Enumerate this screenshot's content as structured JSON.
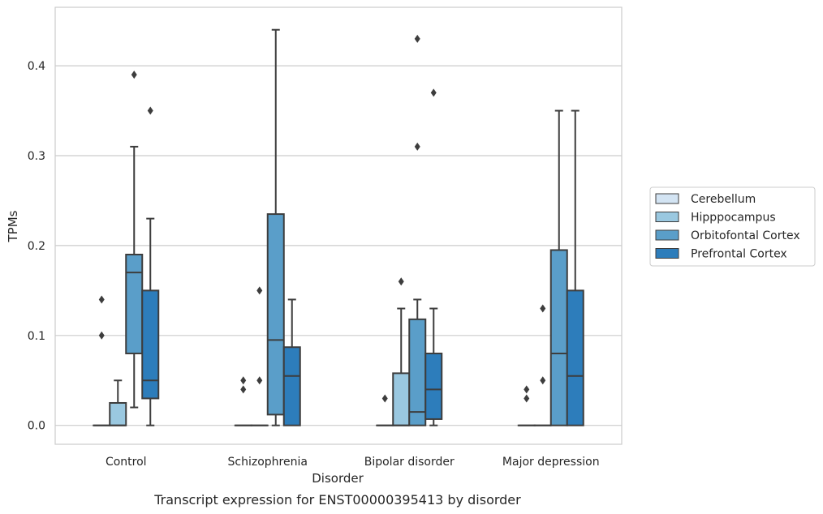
{
  "chart_data": {
    "type": "box",
    "title": "",
    "caption": "Transcript expression for ENST00000395413 by disorder",
    "xlabel": "Disorder",
    "ylabel": "TPMs",
    "ylim": [
      -0.021,
      0.465
    ],
    "yticks": [
      0.0,
      0.1,
      0.2,
      0.3,
      0.4
    ],
    "ytick_labels": [
      "0.0",
      "0.1",
      "0.2",
      "0.3",
      "0.4"
    ],
    "categories": [
      "Control",
      "Schizophrenia",
      "Bipolar disorder",
      "Major depression"
    ],
    "grid": "horizontal",
    "legend_position": "right",
    "series": [
      {
        "name": "Cerebellum",
        "color": "#d3e4f3",
        "boxes": [
          {
            "q1": 0.0,
            "median": 0.0,
            "q3": 0.0,
            "whisker_low": 0.0,
            "whisker_high": 0.0,
            "outliers": [
              0.1,
              0.14
            ]
          },
          {
            "q1": 0.0,
            "median": 0.0,
            "q3": 0.0,
            "whisker_low": 0.0,
            "whisker_high": 0.0,
            "outliers": [
              0.04,
              0.05
            ]
          },
          {
            "q1": 0.0,
            "median": 0.0,
            "q3": 0.0,
            "whisker_low": 0.0,
            "whisker_high": 0.0,
            "outliers": [
              0.03
            ]
          },
          {
            "q1": 0.0,
            "median": 0.0,
            "q3": 0.0,
            "whisker_low": 0.0,
            "whisker_high": 0.0,
            "outliers": [
              0.03,
              0.04
            ]
          }
        ]
      },
      {
        "name": "Hipppocampus",
        "color": "#9ac8e0",
        "boxes": [
          {
            "q1": 0.0,
            "median": 0.0,
            "q3": 0.025,
            "whisker_low": 0.0,
            "whisker_high": 0.05,
            "outliers": []
          },
          {
            "q1": 0.0,
            "median": 0.0,
            "q3": 0.0,
            "whisker_low": 0.0,
            "whisker_high": 0.0,
            "outliers": [
              0.05,
              0.15
            ]
          },
          {
            "q1": 0.0,
            "median": 0.0,
            "q3": 0.058,
            "whisker_low": 0.0,
            "whisker_high": 0.13,
            "outliers": [
              0.16
            ]
          },
          {
            "q1": 0.0,
            "median": 0.0,
            "q3": 0.0,
            "whisker_low": 0.0,
            "whisker_high": 0.0,
            "outliers": [
              0.05,
              0.13
            ]
          }
        ]
      },
      {
        "name": "Orbitofontal Cortex",
        "color": "#5a9ec9",
        "boxes": [
          {
            "q1": 0.08,
            "median": 0.17,
            "q3": 0.19,
            "whisker_low": 0.02,
            "whisker_high": 0.31,
            "outliers": [
              0.39
            ]
          },
          {
            "q1": 0.012,
            "median": 0.095,
            "q3": 0.235,
            "whisker_low": 0.0,
            "whisker_high": 0.44,
            "outliers": []
          },
          {
            "q1": 0.0,
            "median": 0.015,
            "q3": 0.118,
            "whisker_low": 0.0,
            "whisker_high": 0.14,
            "outliers": [
              0.31,
              0.43
            ]
          },
          {
            "q1": 0.0,
            "median": 0.08,
            "q3": 0.195,
            "whisker_low": 0.0,
            "whisker_high": 0.35,
            "outliers": []
          }
        ]
      },
      {
        "name": "Prefrontal Cortex",
        "color": "#2d7dbb",
        "boxes": [
          {
            "q1": 0.03,
            "median": 0.05,
            "q3": 0.15,
            "whisker_low": 0.0,
            "whisker_high": 0.23,
            "outliers": [
              0.35
            ]
          },
          {
            "q1": 0.0,
            "median": 0.055,
            "q3": 0.087,
            "whisker_low": 0.0,
            "whisker_high": 0.14,
            "outliers": []
          },
          {
            "q1": 0.007,
            "median": 0.04,
            "q3": 0.08,
            "whisker_low": 0.0,
            "whisker_high": 0.13,
            "outliers": [
              0.37
            ]
          },
          {
            "q1": 0.0,
            "median": 0.055,
            "q3": 0.15,
            "whisker_low": 0.0,
            "whisker_high": 0.35,
            "outliers": []
          }
        ]
      }
    ]
  }
}
